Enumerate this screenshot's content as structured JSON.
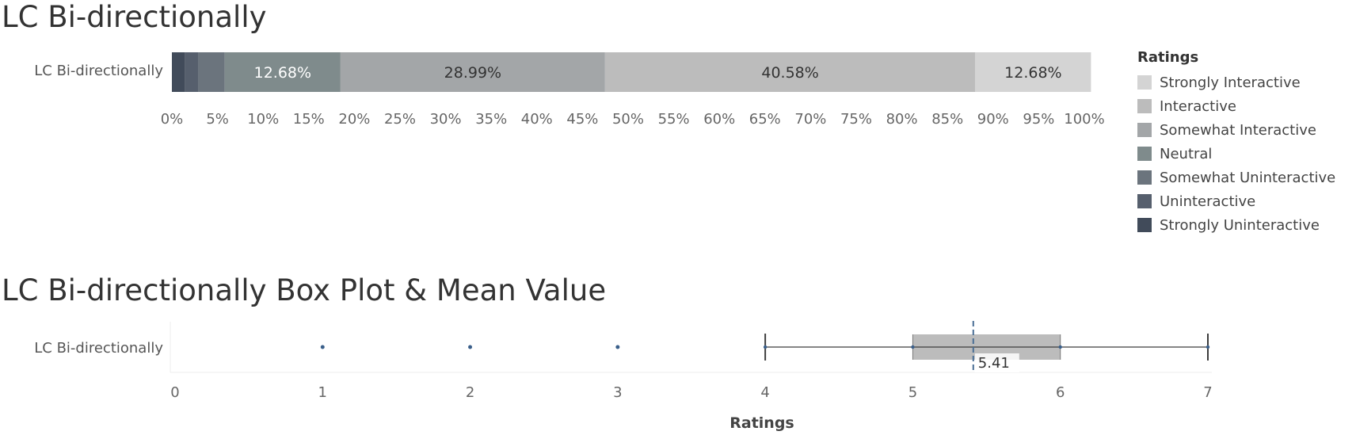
{
  "page": {
    "title_stacked": "LC Bi-directionally",
    "title_box": "LC Bi-directionally Box Plot & Mean Value"
  },
  "chart_data": [
    {
      "type": "bar",
      "orientation": "horizontal",
      "stacked": true,
      "categories": [
        "LC Bi-directionally"
      ],
      "series": [
        {
          "name": "Strongly Uninteractive",
          "values": [
            1.45
          ],
          "color": "#414b5a",
          "label": ""
        },
        {
          "name": "Uninteractive",
          "values": [
            1.45
          ],
          "color": "#565f6d",
          "label": ""
        },
        {
          "name": "Somewhat Uninteractive",
          "values": [
            2.9
          ],
          "color": "#6b747d",
          "label": ""
        },
        {
          "name": "Neutral",
          "values": [
            12.68
          ],
          "color": "#7f8b8c",
          "label": "12.68%"
        },
        {
          "name": "Somewhat Interactive",
          "values": [
            28.99
          ],
          "color": "#a3a6a8",
          "label": "28.99%"
        },
        {
          "name": "Interactive",
          "values": [
            40.58
          ],
          "color": "#bcbcbc",
          "label": "40.58%"
        },
        {
          "name": "Strongly Interactive",
          "values": [
            12.68
          ],
          "color": "#d4d4d4",
          "label": "12.68%"
        }
      ],
      "x_ticks": [
        "0%",
        "5%",
        "10%",
        "15%",
        "20%",
        "25%",
        "30%",
        "35%",
        "40%",
        "45%",
        "50%",
        "55%",
        "60%",
        "65%",
        "70%",
        "75%",
        "80%",
        "85%",
        "90%",
        "95%",
        "100%"
      ],
      "xlim": [
        0,
        100
      ],
      "legend": {
        "title": "Ratings",
        "placement": "right",
        "items": [
          {
            "name": "Strongly Interactive",
            "color": "#d4d4d4"
          },
          {
            "name": "Interactive",
            "color": "#bcbcbc"
          },
          {
            "name": "Somewhat Interactive",
            "color": "#a3a6a8"
          },
          {
            "name": "Neutral",
            "color": "#7f8b8c"
          },
          {
            "name": "Somewhat Uninteractive",
            "color": "#6b747d"
          },
          {
            "name": "Uninteractive",
            "color": "#565f6d"
          },
          {
            "name": "Strongly Uninteractive",
            "color": "#414b5a"
          }
        ]
      }
    },
    {
      "type": "box",
      "categories": [
        "LC Bi-directionally"
      ],
      "xlabel": "Ratings",
      "xlim": [
        0,
        7
      ],
      "x_ticks": [
        "0",
        "1",
        "2",
        "3",
        "4",
        "5",
        "6",
        "7"
      ],
      "box": {
        "whisker_low": 4,
        "q1": 5,
        "q3": 6,
        "whisker_high": 7
      },
      "mean": 5.41,
      "mean_label": "5.41",
      "outliers": [
        1,
        2,
        3
      ],
      "colors": {
        "box": "#bcbcbc",
        "mean_line": "#4a6f96",
        "outlier": "#3a5f8a",
        "whisker": "#3c3c3c"
      }
    }
  ]
}
